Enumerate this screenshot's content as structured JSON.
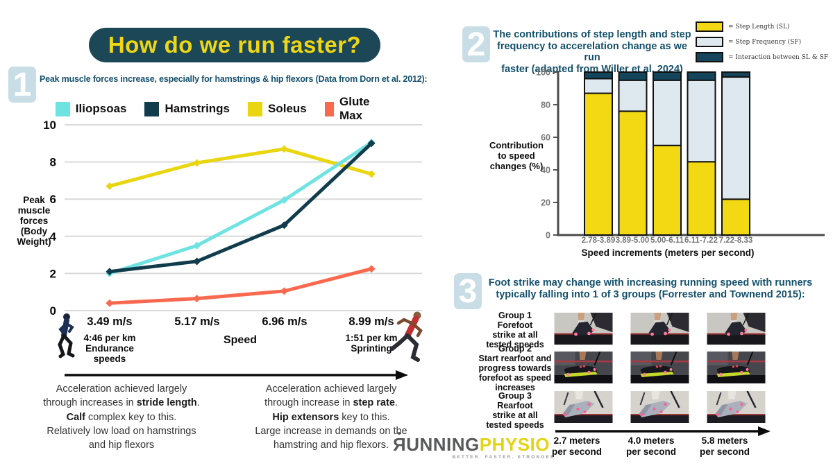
{
  "title": "How do we run faster?",
  "colors": {
    "teal_dark": "#1b4756",
    "heading_teal": "#14506c",
    "yellow": "#efd713",
    "cyan": "#6fe3e2",
    "coral": "#f9694f",
    "badge_blue": "#c9dde6",
    "sf_blue": "#dde8ef",
    "interaction_teal": "#15455b"
  },
  "chart_data": [
    {
      "type": "line",
      "title": "Peak muscle forces increase, especially for hamstrings & hip flexors (Data from Dorn et al. 2012)",
      "x": [
        "3.49 m/s",
        "5.17 m/s",
        "6.96 m/s",
        "8.99 m/s"
      ],
      "series": [
        {
          "name": "Iliopsoas",
          "color": "#6fe3e2",
          "values": [
            2.0,
            3.5,
            5.95,
            9.05
          ]
        },
        {
          "name": "Hamstrings",
          "color": "#113c4c",
          "values": [
            2.1,
            2.65,
            4.6,
            9.0
          ]
        },
        {
          "name": "Soleus",
          "color": "#e9d611",
          "values": [
            6.7,
            7.95,
            8.7,
            7.35
          ]
        },
        {
          "name": "Glute Max",
          "color": "#f9694f",
          "values": [
            0.4,
            0.65,
            1.05,
            2.25
          ]
        }
      ],
      "xlabel": "Speed",
      "ylabel": "Peak muscle forces (Body Weight)",
      "ylim": [
        0,
        10
      ],
      "yticks": [
        0,
        2,
        4,
        6,
        8,
        10
      ],
      "grid": "horizontal",
      "legend_position": "top"
    },
    {
      "type": "stacked-bar",
      "title": "The contributions of step length and step frequency to accerelation change as we run faster (adapted from Willer et al. 2024)",
      "categories": [
        "2.78-3.89",
        "3.89-5.00",
        "5.00-6.11",
        "6.11-7.22",
        "7.22-8.33"
      ],
      "series": [
        {
          "name": "Step Length (SL)",
          "color": "#f2d913",
          "values": [
            87,
            76,
            55,
            45,
            22
          ]
        },
        {
          "name": "Step Frequency (SF)",
          "color": "#dde8ef",
          "values": [
            9,
            19,
            40,
            50,
            75
          ]
        },
        {
          "name": "Interaction between SL & SF",
          "color": "#15455b",
          "values": [
            4,
            5,
            5,
            5,
            3
          ]
        }
      ],
      "xlabel": "Speed increments (meters per second)",
      "ylabel": "Contribution to speed changes (%)",
      "ylim": [
        0,
        100
      ],
      "yticks": [
        0,
        20,
        40,
        60,
        80,
        100
      ],
      "legend_position": "top-right"
    }
  ],
  "section1": {
    "badge": "1",
    "heading": "Peak muscle forces increase, especially for hamstrings & hip flexors (Data from Dorn et al. 2012):",
    "ylabel_display": "Peak\nmuscle\nforces\n(Body\nWeight)",
    "endurance_note": "4:46 per km\nEndurance\nspeeds",
    "speed_axis_label": "Speed",
    "sprint_note": "1:51 per km\nSprinting",
    "note_left": [
      {
        "t": "Acceleration achieved largely\nthrough increases in "
      },
      {
        "t": "stride length",
        "b": true
      },
      {
        "t": ".\n"
      },
      {
        "t": "Calf",
        "b": true
      },
      {
        "t": " complex key to this.\nRelatively low load on hamstrings\nand hip flexors"
      }
    ],
    "note_right": [
      {
        "t": "Acceleration achieved largely\nthrough increase in "
      },
      {
        "t": "step rate",
        "b": true
      },
      {
        "t": ".\n"
      },
      {
        "t": "Hip extensors",
        "b": true
      },
      {
        "t": " key to this.\nLarge increase in demands on the\nhamstring and hip flexors."
      }
    ]
  },
  "section2": {
    "badge": "2",
    "heading": "The contributions of step length and step\nfrequency to accerelation change as we run\nfaster (adapted from Willer et al. 2024)",
    "legend": [
      {
        "label": "= Step Length (SL)",
        "color": "#f2d913"
      },
      {
        "label": "= Step Frequency (SF)",
        "color": "#dde8ef"
      },
      {
        "label": "= Interaction between SL & SF",
        "color": "#15455b"
      }
    ],
    "ylabel_display": "Contribution\nto speed\nchanges (%)",
    "xlabel": "Speed increments (meters per second)"
  },
  "section3": {
    "badge": "3",
    "heading": "Foot strike may change with increasing running speed with runners\ntypically falling into 1 of 3 groups (Forrester and Townend 2015):",
    "groups": [
      {
        "label": "Group 1\nForefoot\nstrike at all\ntested speeds"
      },
      {
        "label": "Group 2\nStart rearfoot and\nprogress towards\nforefoot as speed\nincreases"
      },
      {
        "label": "Group 3\nRearfoot\nstrike at all\ntested speeds"
      }
    ],
    "speeds": [
      "2.7 meters\nper second",
      "4.0 meters\nper second",
      "5.8 meters\nper second"
    ]
  },
  "logo": {
    "running": "ЯUNNING",
    "physio": "PHYSIO",
    "tagline": "BETTER. FASTER. STRONGER"
  }
}
